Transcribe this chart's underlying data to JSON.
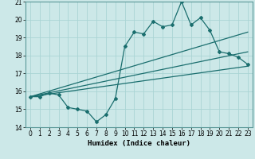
{
  "xlabel": "Humidex (Indice chaleur)",
  "bg_color": "#cce8e8",
  "line_color": "#1a6e6e",
  "grid_color": "#aad4d4",
  "xlim": [
    -0.5,
    23.5
  ],
  "ylim": [
    14,
    21
  ],
  "xticks": [
    0,
    1,
    2,
    3,
    4,
    5,
    6,
    7,
    8,
    9,
    10,
    11,
    12,
    13,
    14,
    15,
    16,
    17,
    18,
    19,
    20,
    21,
    22,
    23
  ],
  "yticks": [
    14,
    15,
    16,
    17,
    18,
    19,
    20,
    21
  ],
  "main_line_x": [
    0,
    1,
    2,
    3,
    4,
    5,
    6,
    7,
    8,
    9,
    10,
    11,
    12,
    13,
    14,
    15,
    16,
    17,
    18,
    19,
    20,
    21,
    22,
    23
  ],
  "main_line_y": [
    15.7,
    15.7,
    15.9,
    15.8,
    15.1,
    15.0,
    14.9,
    14.3,
    14.7,
    15.6,
    18.5,
    19.3,
    19.2,
    19.9,
    19.6,
    19.7,
    21.0,
    19.7,
    20.1,
    19.4,
    18.2,
    18.1,
    17.9,
    17.5
  ],
  "line2_x": [
    0,
    23
  ],
  "line2_y": [
    15.7,
    17.4
  ],
  "line3_x": [
    0,
    23
  ],
  "line3_y": [
    15.7,
    18.2
  ],
  "line4_x": [
    0,
    23
  ],
  "line4_y": [
    15.7,
    19.3
  ],
  "spine_color": "#5a9898"
}
